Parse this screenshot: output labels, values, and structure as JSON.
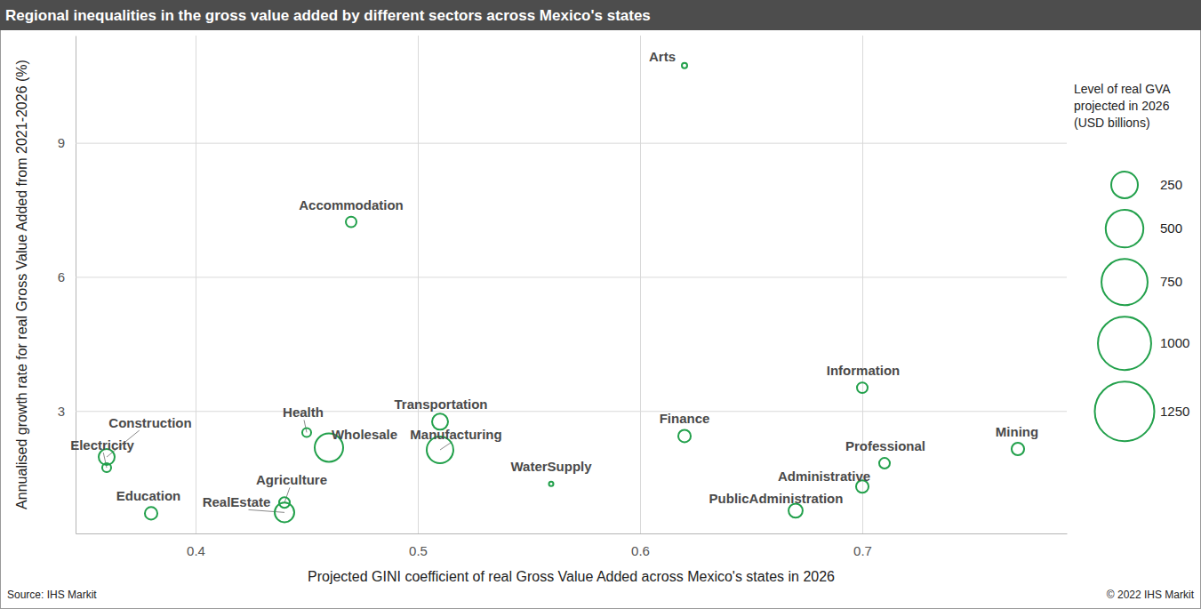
{
  "chart_data": {
    "type": "scatter",
    "title": "Regional inequalities in the gross value added by different sectors across Mexico's states",
    "x_label": "Projected GINI coefficient of real Gross Value Added across Mexico's states in 2026",
    "y_label": "Annualised growth rate for real Gross Value Added from 2021-2026 (%)",
    "source_note": "Source: IHS Markit",
    "copyright": "© 2022 IHS Markit",
    "labels": [
      "Arts",
      "Accommodation",
      "Information",
      "Transportation",
      "Health",
      "Construction",
      "Electricity",
      "Wholesale",
      "Manufacturing",
      "Agriculture",
      "RealEstate",
      "Education",
      "Finance",
      "WaterSupply",
      "Mining",
      "Professional",
      "Administrative",
      "PublicAdministration"
    ],
    "x": [
      0.62,
      0.47,
      0.7,
      0.51,
      0.45,
      0.36,
      0.36,
      0.46,
      0.51,
      0.44,
      0.44,
      0.38,
      0.62,
      0.56,
      0.77,
      0.71,
      0.7,
      0.67
    ],
    "values": [
      10.73,
      7.23,
      3.52,
      2.76,
      2.52,
      1.97,
      1.73,
      2.18,
      2.13,
      0.95,
      0.73,
      0.71,
      2.44,
      1.37,
      2.15,
      1.83,
      1.31,
      0.77
    ],
    "sizes": [
      10,
      40,
      40,
      90,
      28,
      90,
      28,
      285,
      250,
      40,
      135,
      55,
      55,
      7,
      55,
      40,
      55,
      70
    ],
    "size_legend_title": "Level of real GVA projected in 2026 (USD billions)",
    "size_legend_values": [
      250,
      500,
      750,
      1000,
      1250
    ],
    "color": "#22a04b",
    "xlim": [
      0.346,
      0.792
    ],
    "ylim": [
      0.26,
      11.4
    ],
    "xticks": [
      0.4,
      0.5,
      0.6,
      0.7
    ],
    "yticks": [
      3,
      6,
      9
    ],
    "grid": true
  }
}
